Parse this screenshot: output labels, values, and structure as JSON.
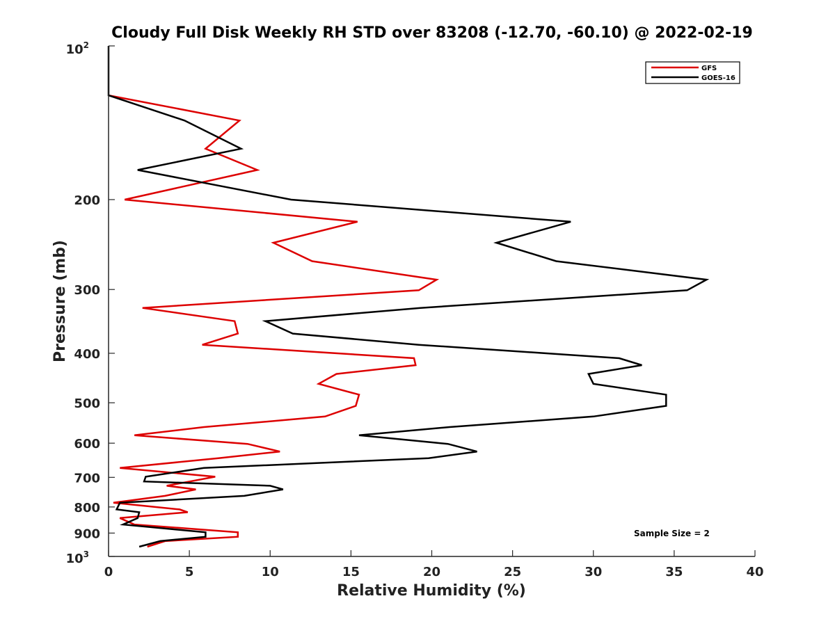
{
  "chart_data": {
    "type": "line",
    "title": "Cloudy Full Disk Weekly RH STD over 83208 (-12.70, -60.10) @ 2022-02-19",
    "xlabel": "Relative Humidity (%)",
    "ylabel": "Pressure (mb)",
    "xlim": [
      0,
      40
    ],
    "ylim": [
      100,
      1000
    ],
    "yscale": "log",
    "yreversed": true,
    "xticks": [
      0,
      5,
      10,
      15,
      20,
      25,
      30,
      35,
      40
    ],
    "xtick_labels": [
      "0",
      "5",
      "10",
      "15",
      "20",
      "25",
      "30",
      "35",
      "40"
    ],
    "yticks": [
      200,
      300,
      400,
      500,
      600,
      700,
      800,
      900
    ],
    "ytick_labels": [
      "200",
      "300",
      "400",
      "500",
      "600",
      "700",
      "800",
      "900"
    ],
    "ytick_top": {
      "base": "10",
      "exp": "2"
    },
    "ytick_bottom": {
      "base": "10",
      "exp": "3"
    },
    "legend_position": "top-right",
    "annotation": "Sample Size = 2",
    "series": [
      {
        "name": "GFS",
        "color": "#dd0000",
        "points": [
          [
            0,
            125
          ],
          [
            8.1,
            140
          ],
          [
            6.0,
            159
          ],
          [
            9.2,
            175
          ],
          [
            1.0,
            200
          ],
          [
            15.4,
            221
          ],
          [
            10.2,
            243
          ],
          [
            12.6,
            264
          ],
          [
            20.3,
            287
          ],
          [
            19.2,
            301
          ],
          [
            2.1,
            326
          ],
          [
            7.8,
            346
          ],
          [
            8.0,
            366
          ],
          [
            5.8,
            385
          ],
          [
            18.9,
            409
          ],
          [
            19.0,
            422
          ],
          [
            14.1,
            439
          ],
          [
            13.0,
            459
          ],
          [
            15.5,
            482
          ],
          [
            15.3,
            507
          ],
          [
            13.4,
            532
          ],
          [
            5.9,
            558
          ],
          [
            1.6,
            579
          ],
          [
            8.6,
            602
          ],
          [
            10.6,
            623
          ],
          [
            6.8,
            642
          ],
          [
            0.7,
            671
          ],
          [
            6.6,
            698
          ],
          [
            3.6,
            727
          ],
          [
            5.4,
            739
          ],
          [
            3.5,
            761
          ],
          [
            0.3,
            785
          ],
          [
            4.4,
            809
          ],
          [
            4.9,
            819
          ],
          [
            0.7,
            841
          ],
          [
            1.6,
            866
          ],
          [
            8.0,
            897
          ],
          [
            8.0,
            915
          ],
          [
            3.5,
            933
          ],
          [
            2.4,
            957
          ]
        ]
      },
      {
        "name": "GOES-16",
        "color": "#000000",
        "points": [
          [
            0,
            100
          ],
          [
            0,
            125
          ],
          [
            4.7,
            140
          ],
          [
            8.2,
            159
          ],
          [
            1.8,
            175
          ],
          [
            11.3,
            200
          ],
          [
            28.6,
            221
          ],
          [
            24.0,
            243
          ],
          [
            27.7,
            264
          ],
          [
            37.0,
            287
          ],
          [
            35.8,
            301
          ],
          [
            19.3,
            326
          ],
          [
            9.7,
            346
          ],
          [
            11.4,
            366
          ],
          [
            19.2,
            385
          ],
          [
            31.6,
            409
          ],
          [
            33.0,
            422
          ],
          [
            29.7,
            439
          ],
          [
            30.0,
            459
          ],
          [
            34.5,
            482
          ],
          [
            34.5,
            507
          ],
          [
            30.0,
            532
          ],
          [
            21.1,
            558
          ],
          [
            15.5,
            579
          ],
          [
            21.0,
            602
          ],
          [
            22.8,
            623
          ],
          [
            19.8,
            642
          ],
          [
            5.9,
            671
          ],
          [
            2.3,
            698
          ],
          [
            2.2,
            713
          ],
          [
            10.0,
            727
          ],
          [
            10.8,
            739
          ],
          [
            8.4,
            761
          ],
          [
            0.7,
            785
          ],
          [
            0.5,
            809
          ],
          [
            1.9,
            819
          ],
          [
            1.8,
            841
          ],
          [
            0.9,
            866
          ],
          [
            6.0,
            897
          ],
          [
            6.0,
            915
          ],
          [
            3.2,
            933
          ],
          [
            1.9,
            957
          ]
        ]
      }
    ]
  }
}
